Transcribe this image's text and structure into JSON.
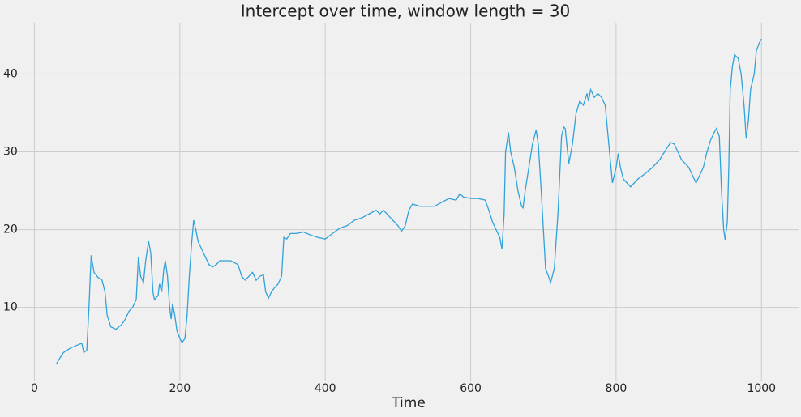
{
  "chart_data": {
    "type": "line",
    "title": "Intercept over time, window length = 30",
    "xlabel": "Time",
    "x": [
      30,
      35,
      40,
      50,
      60,
      65,
      68,
      72,
      75,
      78,
      82,
      88,
      93,
      97,
      100,
      105,
      112,
      120,
      125,
      130,
      135,
      140,
      143,
      146,
      150,
      153,
      157,
      160,
      163,
      165,
      170,
      172,
      175,
      178,
      180,
      183,
      186,
      188,
      190,
      193,
      196,
      200,
      203,
      207,
      210,
      213,
      216,
      219,
      222,
      225,
      230,
      235,
      240,
      245,
      250,
      255,
      260,
      270,
      280,
      285,
      290,
      295,
      300,
      305,
      310,
      315,
      318,
      322,
      326,
      330,
      335,
      340,
      343,
      347,
      352,
      360,
      370,
      380,
      390,
      400,
      410,
      420,
      430,
      440,
      450,
      460,
      470,
      475,
      480,
      490,
      500,
      505,
      510,
      515,
      520,
      530,
      540,
      550,
      560,
      570,
      580,
      585,
      590,
      600,
      610,
      620,
      625,
      630,
      635,
      640,
      643,
      646,
      648,
      652,
      655,
      660,
      665,
      670,
      672,
      675,
      680,
      685,
      690,
      693,
      697,
      700,
      703,
      707,
      710,
      715,
      720,
      723,
      725,
      728,
      730,
      735,
      740,
      745,
      750,
      755,
      760,
      762,
      765,
      770,
      775,
      780,
      785,
      790,
      795,
      800,
      803,
      806,
      810,
      820,
      830,
      840,
      850,
      860,
      870,
      875,
      880,
      885,
      890,
      900,
      910,
      915,
      920,
      925,
      930,
      935,
      938,
      942,
      945,
      948,
      950,
      953,
      955,
      957,
      960,
      963,
      968,
      972,
      976,
      979,
      982,
      985,
      990,
      993,
      997,
      1000
    ],
    "series": [
      {
        "name": "Intercept",
        "color": "#30a2da",
        "values": [
          2.7,
          3.5,
          4.2,
          4.8,
          5.2,
          5.4,
          4.2,
          4.5,
          10,
          16.7,
          14.5,
          13.8,
          13.5,
          12,
          9,
          7.5,
          7.2,
          7.8,
          8.5,
          9.5,
          10,
          11,
          16.5,
          14,
          13.2,
          16,
          18.5,
          17,
          12,
          11,
          11.5,
          13,
          12,
          15,
          16,
          14,
          10,
          8.5,
          10.5,
          9,
          7,
          6,
          5.5,
          6,
          9,
          14,
          18,
          21.2,
          20,
          18.5,
          17.5,
          16.5,
          15.5,
          15.2,
          15.5,
          16,
          16,
          16,
          15.5,
          14,
          13.5,
          14,
          14.5,
          13.5,
          14,
          14.2,
          12,
          11.2,
          12,
          12.5,
          13,
          14,
          19,
          18.8,
          19.5,
          19.5,
          19.7,
          19.3,
          19,
          18.8,
          19.5,
          20.2,
          20.5,
          21.2,
          21.5,
          22,
          22.5,
          22,
          22.5,
          21.5,
          20.5,
          19.8,
          20.5,
          22.5,
          23.3,
          23,
          23,
          23,
          23.5,
          24,
          23.8,
          24.6,
          24.2,
          24,
          24,
          23.8,
          22.5,
          21,
          20,
          19,
          17.5,
          22,
          30,
          32.5,
          30,
          28,
          25,
          23,
          22.8,
          25,
          28,
          31,
          32.8,
          31,
          25,
          20,
          15,
          14,
          13.2,
          15,
          22,
          28,
          32,
          33.2,
          33,
          28.5,
          31,
          35,
          36.5,
          36,
          37.5,
          36.5,
          38,
          37,
          37.5,
          37,
          36,
          31,
          26,
          28,
          29.8,
          28,
          26.5,
          25.5,
          26.5,
          27.2,
          28,
          29,
          30.5,
          31.2,
          31,
          30,
          29,
          28,
          26,
          27,
          28,
          30,
          31.5,
          32.5,
          33,
          32,
          25,
          20,
          18.7,
          21,
          28,
          38,
          41,
          42.5,
          42,
          40,
          36,
          31.7,
          34,
          38,
          40,
          43,
          44,
          44.5
        ]
      }
    ],
    "xlim": [
      -34,
      1051
    ],
    "ylim": [
      0.6,
      46.6
    ],
    "xticks": [
      0,
      200,
      400,
      600,
      800,
      1000
    ],
    "yticks": [
      10,
      20,
      30,
      40
    ],
    "grid": true
  }
}
